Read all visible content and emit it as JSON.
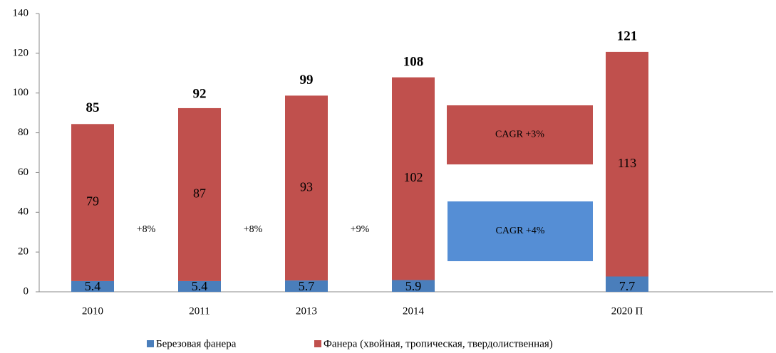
{
  "chart_data": {
    "type": "stacked_bar",
    "categories": [
      "2010",
      "2011",
      "2013",
      "2014",
      null,
      "2020 П"
    ],
    "series": [
      {
        "name": "Березовая фанера",
        "color": "#4a7ebb",
        "values": [
          5.4,
          5.4,
          5.7,
          5.9,
          null,
          7.7
        ]
      },
      {
        "name": "Фанера (хвойная, тропическая, твердолиственная)",
        "color": "#c0504d",
        "values": [
          79,
          87,
          93,
          102,
          null,
          113
        ]
      }
    ],
    "totals": [
      85,
      92,
      99,
      108,
      null,
      121
    ],
    "growth_labels": [
      "+8%",
      "+8%",
      "+9%"
    ],
    "cagr_boxes": [
      {
        "text": "CAGR +3%",
        "color": "#c0504d"
      },
      {
        "text": "CAGR +4%",
        "color": "#558ed5"
      }
    ],
    "ylim": [
      0,
      140
    ],
    "yticks": [
      0,
      20,
      40,
      60,
      80,
      100,
      120,
      140
    ],
    "grid": false
  }
}
